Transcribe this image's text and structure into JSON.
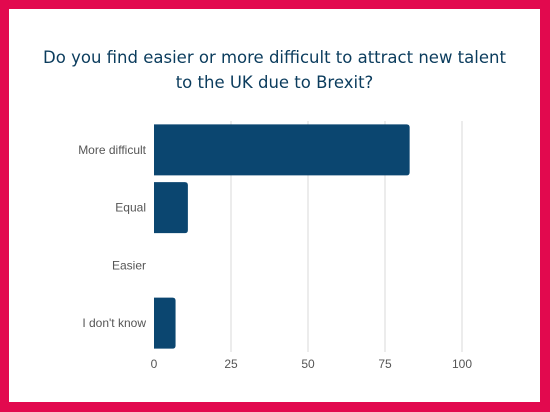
{
  "chart_data": {
    "type": "bar",
    "orientation": "horizontal",
    "title_lines": [
      "Do you find easier or more difficult to attract new talent",
      "to the UK due to Brexit?"
    ],
    "categories": [
      "More difficult",
      "Equal",
      "Easier",
      "I don't know"
    ],
    "values": [
      83,
      11,
      0,
      7
    ],
    "xlim": [
      0,
      100
    ],
    "xticks": [
      "0",
      "25",
      "50",
      "75",
      "100"
    ],
    "xtick_values": [
      0,
      25,
      50,
      75,
      100
    ],
    "bar_color": "#0b4670",
    "grid": "vertical",
    "legend": "none"
  },
  "colors": {
    "frame": "#e2094e",
    "title": "#0b3c5d",
    "gridline": "#d9d9d9"
  }
}
